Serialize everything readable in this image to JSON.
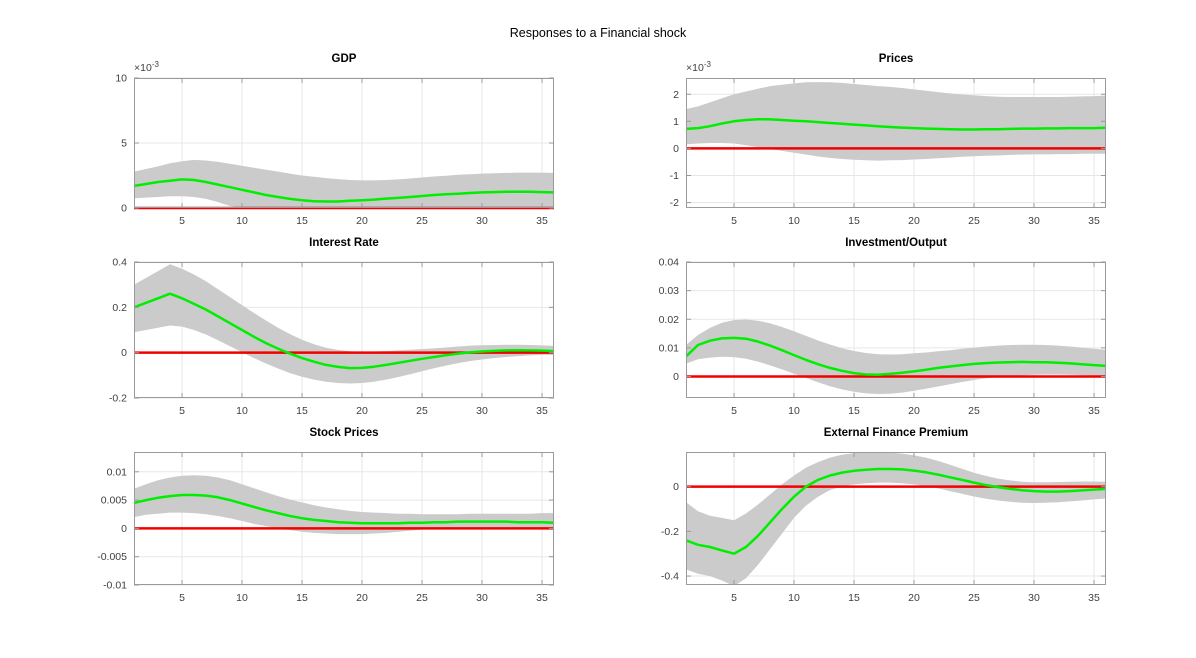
{
  "figure": {
    "title": "Responses to a Financial shock",
    "colors": {
      "median": "#00ee00",
      "zero_line": "#f20000",
      "band": "#cbcbcb",
      "axis": "#9a9a9a",
      "grid": "#e7e7e7",
      "tick_label": "#404040",
      "title_color": "#000000",
      "background": "#ffffff"
    }
  },
  "chart_shared": {
    "x": [
      1,
      2,
      3,
      4,
      5,
      6,
      7,
      8,
      9,
      10,
      11,
      12,
      13,
      14,
      15,
      16,
      17,
      18,
      19,
      20,
      21,
      22,
      23,
      24,
      25,
      26,
      27,
      28,
      29,
      30,
      31,
      32,
      33,
      34,
      35,
      36
    ],
    "xlim": [
      1,
      36
    ],
    "xticks": [
      5,
      10,
      15,
      20,
      25,
      30,
      35
    ],
    "xtick_labels": [
      "5",
      "10",
      "15",
      "20",
      "25",
      "30",
      "35"
    ],
    "grid": true,
    "legend": "none"
  },
  "chart_data": [
    {
      "type": "line",
      "title": "GDP",
      "exponent": {
        "base": "×10",
        "power": "-3"
      },
      "ylim": [
        0,
        0.01
      ],
      "yticks": [
        0,
        0.005,
        0.01
      ],
      "ytick_labels": [
        "0",
        "5",
        "10"
      ],
      "zero_line": 0,
      "series": [
        {
          "name": "median",
          "values": [
            0.0017,
            0.00185,
            0.002,
            0.0021,
            0.0022,
            0.00215,
            0.002,
            0.0018,
            0.0016,
            0.0014,
            0.0012,
            0.001,
            0.00085,
            0.0007,
            0.0006,
            0.00052,
            0.0005,
            0.0005,
            0.00055,
            0.0006,
            0.00065,
            0.00072,
            0.00078,
            0.00085,
            0.00092,
            0.001,
            0.00105,
            0.0011,
            0.00115,
            0.0012,
            0.00122,
            0.00125,
            0.00125,
            0.00125,
            0.00122,
            0.0012
          ]
        },
        {
          "name": "band_upper",
          "values": [
            0.0028,
            0.003,
            0.0032,
            0.00345,
            0.0036,
            0.0037,
            0.00365,
            0.00355,
            0.0034,
            0.00325,
            0.0031,
            0.00295,
            0.0028,
            0.00265,
            0.0025,
            0.0024,
            0.0023,
            0.00222,
            0.00215,
            0.00212,
            0.00212,
            0.00215,
            0.0022,
            0.00227,
            0.00235,
            0.00242,
            0.00248,
            0.00255,
            0.0026,
            0.00265,
            0.00268,
            0.0027,
            0.00272,
            0.00272,
            0.00272,
            0.0027
          ]
        },
        {
          "name": "band_lower",
          "values": [
            0.00075,
            0.0008,
            0.00085,
            0.0009,
            0.0009,
            0.00085,
            0.0007,
            0.00045,
            0.00015,
            0,
            0,
            0,
            0,
            0,
            0,
            0,
            0,
            0,
            0,
            0,
            0,
            0,
            0,
            0,
            0,
            0,
            0,
            0,
            0,
            0,
            0,
            0,
            0,
            0,
            0,
            0
          ]
        }
      ]
    },
    {
      "type": "line",
      "title": "Prices",
      "exponent": {
        "base": "×10",
        "power": "-3"
      },
      "ylim": [
        -0.0022,
        0.0026
      ],
      "yticks": [
        -0.002,
        -0.001,
        0,
        0.001,
        0.002
      ],
      "ytick_labels": [
        "-2",
        "-1",
        "0",
        "1",
        "2"
      ],
      "zero_line": 0,
      "series": [
        {
          "name": "median",
          "values": [
            0.00072,
            0.00075,
            0.00082,
            0.00092,
            0.001,
            0.00105,
            0.00108,
            0.00107,
            0.00105,
            0.00102,
            0.001,
            0.00097,
            0.00094,
            0.00091,
            0.00088,
            0.00085,
            0.00082,
            0.00079,
            0.00077,
            0.00075,
            0.00073,
            0.00072,
            0.00071,
            0.0007,
            0.0007,
            0.00071,
            0.00071,
            0.00072,
            0.00073,
            0.00073,
            0.00074,
            0.00074,
            0.00075,
            0.00075,
            0.00075,
            0.00076
          ]
        },
        {
          "name": "band_upper",
          "values": [
            0.00145,
            0.00155,
            0.0017,
            0.00185,
            0.002,
            0.0021,
            0.0022,
            0.0023,
            0.00235,
            0.0024,
            0.00244,
            0.00245,
            0.00244,
            0.00242,
            0.00238,
            0.00234,
            0.0023,
            0.00227,
            0.00223,
            0.00218,
            0.00213,
            0.00208,
            0.00203,
            0.00199,
            0.00196,
            0.00193,
            0.00191,
            0.0019,
            0.0019,
            0.0019,
            0.0019,
            0.0019,
            0.00191,
            0.00192,
            0.00193,
            0.00195
          ]
        },
        {
          "name": "band_lower",
          "values": [
            0.00015,
            0.00018,
            0.0002,
            0.0002,
            0.00018,
            0.00012,
            5e-05,
            -2e-05,
            -9e-05,
            -0.00016,
            -0.00023,
            -0.0003,
            -0.00035,
            -0.00039,
            -0.00042,
            -0.00044,
            -0.00045,
            -0.00044,
            -0.00043,
            -0.00041,
            -0.00039,
            -0.00036,
            -0.00034,
            -0.00031,
            -0.00029,
            -0.00027,
            -0.00026,
            -0.00024,
            -0.00023,
            -0.00022,
            -0.00022,
            -0.00021,
            -0.00021,
            -0.0002,
            -0.0002,
            -0.0002
          ]
        }
      ]
    },
    {
      "type": "line",
      "title": "Interest Rate",
      "ylim": [
        -0.2,
        0.4
      ],
      "yticks": [
        -0.2,
        0,
        0.2,
        0.4
      ],
      "ytick_labels": [
        "-0.2",
        "0",
        "0.2",
        "0.4"
      ],
      "zero_line": 0,
      "series": [
        {
          "name": "median",
          "values": [
            0.2,
            0.22,
            0.24,
            0.26,
            0.24,
            0.215,
            0.19,
            0.16,
            0.13,
            0.1,
            0.07,
            0.042,
            0.018,
            -0.004,
            -0.024,
            -0.04,
            -0.054,
            -0.063,
            -0.068,
            -0.067,
            -0.062,
            -0.054,
            -0.045,
            -0.036,
            -0.027,
            -0.019,
            -0.011,
            -0.004,
            0.001,
            0.005,
            0.008,
            0.01,
            0.011,
            0.01,
            0.009,
            0.007
          ]
        },
        {
          "name": "band_upper",
          "values": [
            0.3,
            0.33,
            0.36,
            0.39,
            0.37,
            0.345,
            0.315,
            0.28,
            0.245,
            0.21,
            0.175,
            0.142,
            0.11,
            0.082,
            0.057,
            0.037,
            0.022,
            0.012,
            0.006,
            0.004,
            0.005,
            0.007,
            0.01,
            0.013,
            0.016,
            0.019,
            0.023,
            0.027,
            0.031,
            0.033,
            0.034,
            0.035,
            0.035,
            0.034,
            0.032,
            0.03
          ]
        },
        {
          "name": "band_lower",
          "values": [
            0.09,
            0.1,
            0.11,
            0.12,
            0.115,
            0.1,
            0.08,
            0.055,
            0.028,
            0.002,
            -0.024,
            -0.048,
            -0.07,
            -0.09,
            -0.106,
            -0.119,
            -0.128,
            -0.134,
            -0.136,
            -0.134,
            -0.128,
            -0.119,
            -0.108,
            -0.095,
            -0.082,
            -0.069,
            -0.057,
            -0.046,
            -0.037,
            -0.03,
            -0.024,
            -0.019,
            -0.015,
            -0.012,
            -0.01,
            -0.009
          ]
        }
      ]
    },
    {
      "type": "line",
      "title": "Investment/Output",
      "ylim": [
        -0.0075,
        0.04
      ],
      "yticks": [
        0,
        0.01,
        0.02,
        0.03,
        0.04
      ],
      "ytick_labels": [
        "0",
        "0.01",
        "0.02",
        "0.03",
        "0.04"
      ],
      "zero_line": 0,
      "series": [
        {
          "name": "median",
          "values": [
            0.007,
            0.011,
            0.0125,
            0.0133,
            0.0135,
            0.0132,
            0.0122,
            0.0108,
            0.0092,
            0.0075,
            0.0058,
            0.0043,
            0.003,
            0.002,
            0.0012,
            0.0007,
            0.0006,
            0.0009,
            0.0013,
            0.0018,
            0.0024,
            0.003,
            0.0035,
            0.004,
            0.0044,
            0.0047,
            0.0049,
            0.005,
            0.0051,
            0.005,
            0.005,
            0.0048,
            0.0046,
            0.0043,
            0.004,
            0.0037
          ]
        },
        {
          "name": "band_upper",
          "values": [
            0.011,
            0.0145,
            0.017,
            0.0188,
            0.0197,
            0.0199,
            0.0195,
            0.0186,
            0.0173,
            0.0158,
            0.0142,
            0.0126,
            0.0112,
            0.0099,
            0.0089,
            0.0082,
            0.0078,
            0.0077,
            0.0078,
            0.0081,
            0.0084,
            0.0088,
            0.0092,
            0.0097,
            0.0101,
            0.0105,
            0.0108,
            0.011,
            0.0111,
            0.0111,
            0.011,
            0.0108,
            0.0105,
            0.0101,
            0.0097,
            0.0093
          ]
        },
        {
          "name": "band_lower",
          "values": [
            0.0045,
            0.006,
            0.0066,
            0.0069,
            0.0068,
            0.0062,
            0.0052,
            0.0039,
            0.0025,
            0.001,
            -0.0005,
            -0.002,
            -0.0034,
            -0.0045,
            -0.0053,
            -0.0059,
            -0.0061,
            -0.006,
            -0.0056,
            -0.005,
            -0.0043,
            -0.0035,
            -0.0027,
            -0.0019,
            -0.0012,
            -0.0006,
            -0.0002,
            0.0002,
            0.0004,
            0.0006,
            0.0007,
            0.0007,
            0.0006,
            0.0005,
            0.0004,
            0.0004
          ]
        }
      ]
    },
    {
      "type": "line",
      "title": "Stock Prices",
      "ylim": [
        -0.01,
        0.0135
      ],
      "yticks": [
        -0.01,
        -0.005,
        0,
        0.005,
        0.01
      ],
      "ytick_labels": [
        "-0.01",
        "-0.005",
        "0",
        "0.005",
        "0.01"
      ],
      "zero_line": 0,
      "series": [
        {
          "name": "median",
          "values": [
            0.0045,
            0.005,
            0.0054,
            0.0057,
            0.0059,
            0.0059,
            0.0058,
            0.0055,
            0.005,
            0.0044,
            0.0038,
            0.0032,
            0.0027,
            0.0022,
            0.0018,
            0.0015,
            0.0013,
            0.0011,
            0.001,
            0.0009,
            0.0009,
            0.0009,
            0.0009,
            0.001,
            0.001,
            0.0011,
            0.0011,
            0.0012,
            0.0012,
            0.0012,
            0.0012,
            0.0012,
            0.0011,
            0.0011,
            0.0011,
            0.001
          ]
        },
        {
          "name": "band_upper",
          "values": [
            0.007,
            0.0078,
            0.0085,
            0.009,
            0.0093,
            0.0094,
            0.0093,
            0.009,
            0.0085,
            0.0078,
            0.0071,
            0.0064,
            0.0057,
            0.0051,
            0.0046,
            0.0041,
            0.0037,
            0.0034,
            0.0031,
            0.0029,
            0.0028,
            0.0027,
            0.0026,
            0.0026,
            0.0025,
            0.0025,
            0.0025,
            0.0025,
            0.0026,
            0.0026,
            0.0026,
            0.0026,
            0.0026,
            0.0026,
            0.0027,
            0.0027
          ]
        },
        {
          "name": "band_lower",
          "values": [
            0.002,
            0.0024,
            0.0026,
            0.0028,
            0.0028,
            0.0027,
            0.0025,
            0.0022,
            0.0018,
            0.0013,
            0.0008,
            0.0004,
            0,
            -0.0003,
            -0.0006,
            -0.0008,
            -0.0009,
            -0.001,
            -0.001,
            -0.001,
            -0.0009,
            -0.0008,
            -0.0006,
            -0.0004,
            -0.0002,
            -0.0001,
            0,
            0,
            0.0001,
            0.0001,
            0.0001,
            0.0001,
            0,
            0,
            0,
            0
          ]
        }
      ]
    },
    {
      "type": "line",
      "title": "External Finance Premium",
      "ylim": [
        -0.44,
        0.155
      ],
      "yticks": [
        -0.4,
        -0.2,
        0
      ],
      "ytick_labels": [
        "-0.4",
        "-0.2",
        "0"
      ],
      "zero_line": 0,
      "series": [
        {
          "name": "median",
          "values": [
            -0.24,
            -0.26,
            -0.27,
            -0.285,
            -0.3,
            -0.27,
            -0.22,
            -0.16,
            -0.1,
            -0.045,
            0,
            0.03,
            0.05,
            0.063,
            0.071,
            0.076,
            0.079,
            0.079,
            0.077,
            0.072,
            0.064,
            0.054,
            0.042,
            0.03,
            0.018,
            0.007,
            -0.002,
            -0.01,
            -0.016,
            -0.02,
            -0.022,
            -0.022,
            -0.02,
            -0.017,
            -0.013,
            -0.01
          ]
        },
        {
          "name": "band_upper",
          "values": [
            -0.07,
            -0.11,
            -0.13,
            -0.14,
            -0.15,
            -0.12,
            -0.08,
            -0.035,
            0.01,
            0.05,
            0.085,
            0.11,
            0.13,
            0.143,
            0.15,
            0.153,
            0.154,
            0.152,
            0.148,
            0.14,
            0.13,
            0.115,
            0.098,
            0.08,
            0.062,
            0.048,
            0.036,
            0.028,
            0.022,
            0.02,
            0.02,
            0.021,
            0.022,
            0.023,
            0.023,
            0.022
          ]
        },
        {
          "name": "band_lower",
          "values": [
            -0.37,
            -0.39,
            -0.4,
            -0.42,
            -0.445,
            -0.41,
            -0.35,
            -0.28,
            -0.21,
            -0.14,
            -0.085,
            -0.045,
            -0.015,
            0,
            0.01,
            0.015,
            0.018,
            0.018,
            0.015,
            0.01,
            0.002,
            -0.008,
            -0.02,
            -0.032,
            -0.044,
            -0.054,
            -0.062,
            -0.068,
            -0.072,
            -0.073,
            -0.072,
            -0.07,
            -0.066,
            -0.062,
            -0.057,
            -0.053
          ]
        }
      ]
    }
  ]
}
